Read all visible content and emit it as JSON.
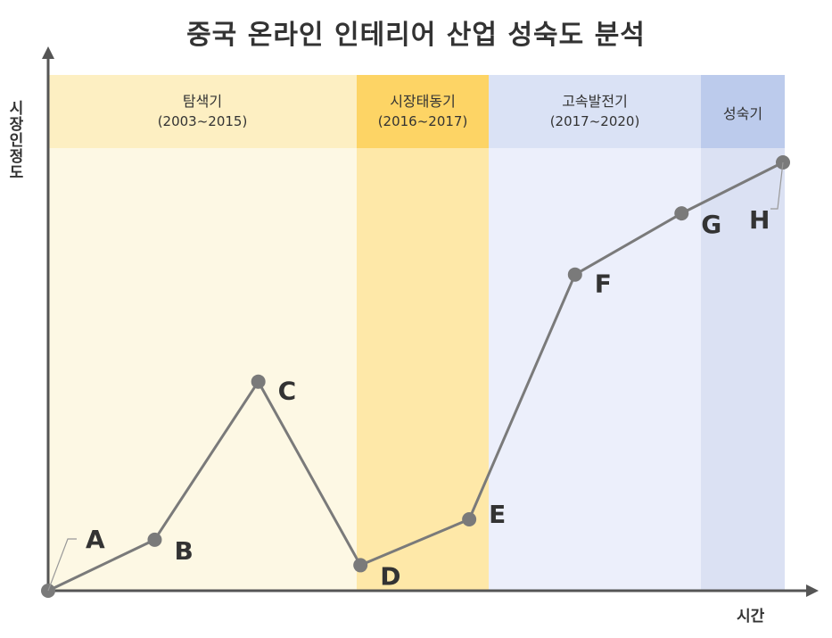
{
  "title": "중국 온라인 인테리어 산업 성숙도 분석",
  "ylabel": "시장인정도",
  "xlabel": "시간",
  "colors": {
    "phase_band_1": "#fdf8e4",
    "phase_head_1": "#fdefc2",
    "phase_band_2": "#fee8a8",
    "phase_head_2": "#fdd465",
    "phase_band_3": "#eceffb",
    "phase_head_3": "#dae2f5",
    "phase_band_4": "#dbe1f3",
    "phase_head_4": "#bccbec",
    "line": "#7a7a7a",
    "point": "#7a7a7a",
    "axis": "#555555"
  },
  "chart_data": {
    "type": "line",
    "title": "중국 온라인 인테리어 산업 성숙도 분석",
    "xlabel": "시간",
    "ylabel": "시장인정도",
    "phases": [
      {
        "name": "탐색기",
        "years": "(2003~2015)"
      },
      {
        "name": "시장태동기",
        "years": "(2016~2017)"
      },
      {
        "name": "고속발전기",
        "years": "(2017~2020)"
      },
      {
        "name": "성숙기",
        "years": ""
      }
    ],
    "points": [
      {
        "label": "A",
        "x": 0.0,
        "y": 0.0
      },
      {
        "label": "B",
        "x": 0.145,
        "y": 0.1
      },
      {
        "label": "C",
        "x": 0.286,
        "y": 0.41
      },
      {
        "label": "D",
        "x": 0.425,
        "y": 0.05
      },
      {
        "label": "E",
        "x": 0.573,
        "y": 0.14
      },
      {
        "label": "F",
        "x": 0.717,
        "y": 0.62
      },
      {
        "label": "G",
        "x": 0.862,
        "y": 0.74
      },
      {
        "label": "H",
        "x": 1.0,
        "y": 0.84
      }
    ],
    "xlim": [
      0,
      1
    ],
    "ylim": [
      0,
      1
    ],
    "grid": false,
    "axis_ticks": false
  }
}
